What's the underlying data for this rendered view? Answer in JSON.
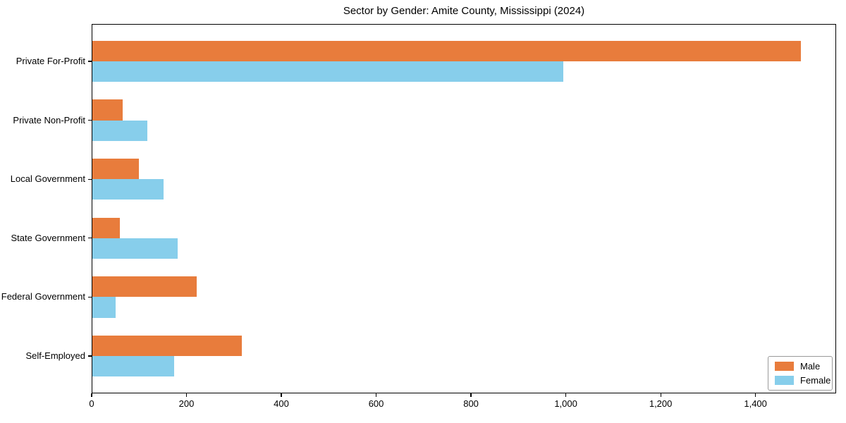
{
  "chart_data": {
    "type": "bar",
    "orientation": "horizontal",
    "title": "Sector by Gender: Amite County, Mississippi (2024)",
    "categories": [
      "Private For-Profit",
      "Private Non-Profit",
      "Local Government",
      "State Government",
      "Federal Government",
      "Self-Employed"
    ],
    "series": [
      {
        "name": "Male",
        "color": "#e87c3c",
        "values": [
          1495,
          66,
          99,
          60,
          221,
          316
        ]
      },
      {
        "name": "Female",
        "color": "#87ceeb",
        "values": [
          995,
          118,
          152,
          182,
          51,
          174
        ]
      }
    ],
    "xlabel": "",
    "ylabel": "",
    "xlim": [
      0,
      1570
    ],
    "xticks": [
      0,
      200,
      400,
      600,
      800,
      1000,
      1200,
      1400
    ],
    "xtick_labels": [
      "0",
      "200",
      "400",
      "600",
      "800",
      "1,000",
      "1,200",
      "1,400"
    ],
    "grid": false,
    "legend_position": "lower right",
    "plot_background": "#ffffff",
    "spine_color": "#000000"
  }
}
